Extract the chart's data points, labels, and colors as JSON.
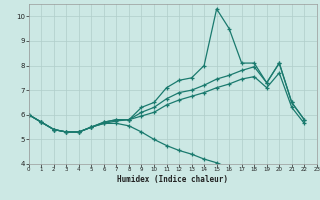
{
  "xlabel": "Humidex (Indice chaleur)",
  "xlim": [
    0,
    23
  ],
  "ylim": [
    4,
    10.5
  ],
  "xticks": [
    0,
    1,
    2,
    3,
    4,
    5,
    6,
    7,
    8,
    9,
    10,
    11,
    12,
    13,
    14,
    15,
    16,
    17,
    18,
    19,
    20,
    21,
    22,
    23
  ],
  "yticks": [
    4,
    5,
    6,
    7,
    8,
    9,
    10
  ],
  "bg_color": "#cce8e4",
  "line_color": "#1a7a6e",
  "grid_color": "#b0ceca",
  "line1_x": [
    0,
    1,
    2,
    3,
    4,
    5,
    6,
    7,
    8,
    9,
    10,
    11,
    12,
    13,
    14,
    15,
    16,
    17,
    18,
    19,
    20,
    21,
    22
  ],
  "line1_y": [
    6.0,
    5.7,
    5.4,
    5.3,
    5.3,
    5.5,
    5.7,
    5.8,
    5.8,
    6.3,
    6.5,
    7.1,
    7.4,
    7.5,
    8.0,
    10.3,
    9.5,
    8.1,
    8.1,
    7.3,
    8.1,
    6.5,
    5.8
  ],
  "line2_x": [
    0,
    1,
    2,
    3,
    4,
    5,
    6,
    7,
    8,
    9,
    10,
    11,
    12,
    13,
    14,
    15,
    16,
    17,
    18,
    19,
    20,
    21,
    22
  ],
  "line2_y": [
    6.0,
    5.7,
    5.4,
    5.3,
    5.3,
    5.5,
    5.7,
    5.8,
    5.8,
    6.1,
    6.3,
    6.65,
    6.9,
    7.0,
    7.2,
    7.45,
    7.6,
    7.8,
    7.95,
    7.3,
    8.1,
    6.5,
    5.8
  ],
  "line3_x": [
    0,
    1,
    2,
    3,
    4,
    5,
    6,
    7,
    8,
    9,
    10,
    11,
    12,
    13,
    14,
    15,
    16,
    17,
    18,
    19,
    20,
    21,
    22
  ],
  "line3_y": [
    6.0,
    5.7,
    5.4,
    5.3,
    5.3,
    5.5,
    5.65,
    5.75,
    5.8,
    5.95,
    6.1,
    6.4,
    6.6,
    6.75,
    6.9,
    7.1,
    7.25,
    7.45,
    7.55,
    7.1,
    7.7,
    6.3,
    5.65
  ],
  "line4_x": [
    0,
    1,
    2,
    3,
    4,
    5,
    6,
    7,
    8,
    9,
    10,
    11,
    12,
    13,
    14,
    15,
    16,
    17,
    18,
    19,
    20,
    21,
    22
  ],
  "line4_y": [
    6.0,
    5.7,
    5.4,
    5.3,
    5.3,
    5.5,
    5.65,
    5.65,
    5.55,
    5.3,
    5.0,
    4.75,
    4.55,
    4.4,
    4.2,
    4.05,
    3.85,
    null,
    null,
    null,
    null,
    null,
    null
  ]
}
